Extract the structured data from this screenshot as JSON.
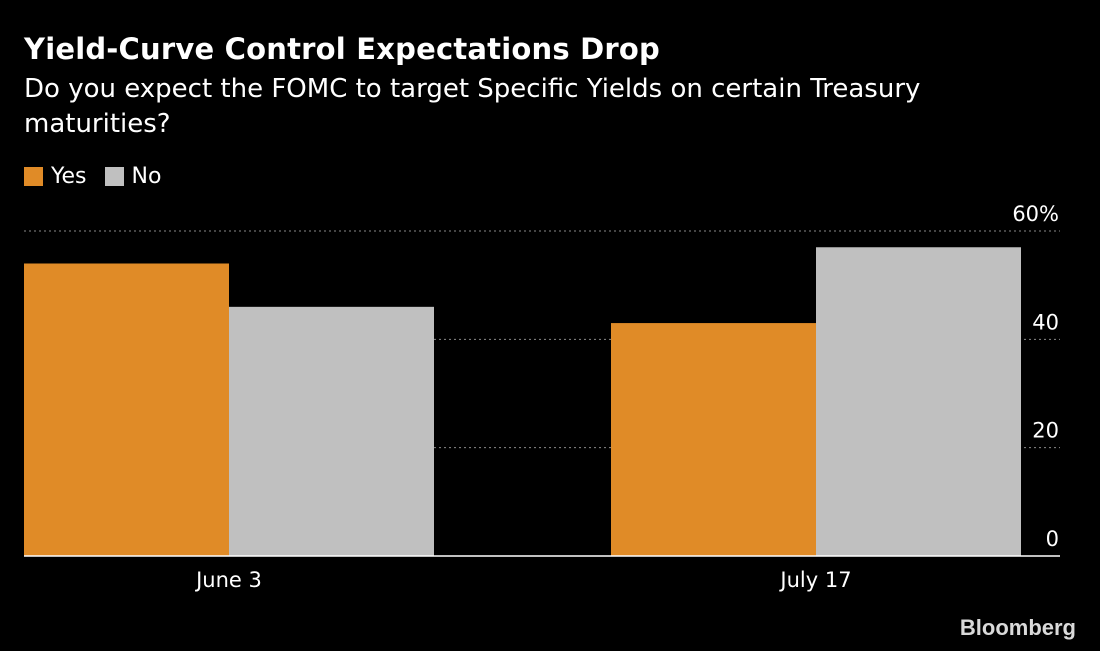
{
  "chart_data": {
    "type": "bar",
    "title": "Yield-Curve Control Expectations Drop",
    "subtitle": "Do you expect the FOMC to target Specific Yields on certain Treasury maturities?",
    "categories": [
      "June 3",
      "July 17"
    ],
    "series": [
      {
        "name": "Yes",
        "color": "#e08b27",
        "values": [
          54,
          43
        ]
      },
      {
        "name": "No",
        "color": "#c0c0c0",
        "values": [
          46,
          57
        ]
      }
    ],
    "ylim": [
      0,
      60
    ],
    "yticks": [
      {
        "value": 0,
        "label": "0"
      },
      {
        "value": 20,
        "label": "20"
      },
      {
        "value": 40,
        "label": "40"
      },
      {
        "value": 60,
        "label": "60%"
      }
    ],
    "xlabel": "",
    "ylabel": "",
    "grid": true,
    "legend": "top-left"
  },
  "footer": {
    "source": "Bloomberg"
  }
}
